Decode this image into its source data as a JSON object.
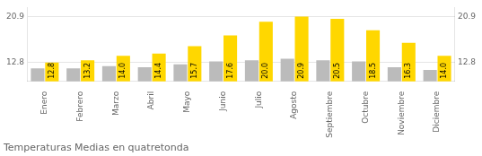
{
  "chart_data": {
    "type": "bar",
    "title": "Temperaturas Medias en quatretonda",
    "categories": [
      "Enero",
      "Febrero",
      "Marzo",
      "Abril",
      "Mayo",
      "Junio",
      "Julio",
      "Agosto",
      "Septiembre",
      "Octubre",
      "Noviembre",
      "Diciembre"
    ],
    "series": [
      {
        "color": "#BBBBBB",
        "values": [
          11.8,
          11.8,
          12.2,
          12.0,
          12.5,
          13.0,
          13.2,
          13.5,
          13.2,
          13.0,
          12.0,
          11.5
        ]
      },
      {
        "color": "#FFD700",
        "values": [
          12.8,
          13.2,
          14.0,
          14.4,
          15.7,
          17.6,
          20.0,
          20.9,
          20.5,
          18.5,
          16.3,
          14.0
        ],
        "data_labels": true,
        "value_labels": [
          "12.8",
          "13.2",
          "14.0",
          "14.4",
          "15.7",
          "17.6",
          "20.0",
          "20.9",
          "20.5",
          "18.5",
          "16.3",
          "14.0"
        ]
      }
    ],
    "ylim": [
      9.5,
      22.5
    ],
    "yticks": [
      12.8,
      20.9
    ],
    "y2lim": [
      9.5,
      22.5
    ],
    "y2ticks": [
      12.8,
      20.9
    ],
    "grid": true
  }
}
